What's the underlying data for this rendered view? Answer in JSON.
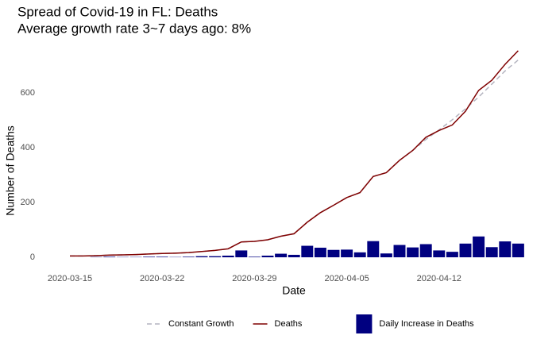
{
  "chart_data": {
    "type": "line",
    "title": "Spread of Covid-19 in FL: Deaths",
    "subtitle": "Average growth rate 3~7 days ago: 8%",
    "x_label": "Date",
    "y_label": "Number of Deaths",
    "categories": [
      "2020-03-15",
      null,
      null,
      null,
      null,
      null,
      null,
      "2020-03-22",
      null,
      null,
      null,
      null,
      null,
      null,
      "2020-03-29",
      null,
      null,
      null,
      null,
      null,
      null,
      "2020-04-05",
      null,
      null,
      null,
      null,
      null,
      null,
      "2020-04-12",
      null,
      null,
      null,
      null,
      null,
      null
    ],
    "series": [
      {
        "name": "Constant Growth",
        "color": "#b3b3bf",
        "dashed": true,
        "values": [
          5,
          5,
          6,
          8,
          9,
          10,
          12,
          14,
          15,
          17,
          21,
          25,
          31,
          56,
          58,
          64,
          77,
          86,
          128,
          163,
          190,
          218,
          236,
          295,
          309,
          354,
          390,
          430,
          465,
          502,
          542,
          585,
          632,
          680,
          720
        ]
      },
      {
        "name": "Deaths",
        "color": "#7f0000",
        "values": [
          5,
          5,
          6,
          8,
          9,
          10,
          12,
          14,
          15,
          17,
          21,
          25,
          31,
          56,
          58,
          64,
          77,
          86,
          128,
          163,
          190,
          218,
          236,
          295,
          309,
          354,
          390,
          438,
          463,
          483,
          533,
          609,
          646,
          704,
          754
        ]
      },
      {
        "name": "Daily Increase in Deaths",
        "color": "#000080",
        "kind": "bar",
        "values": [
          0,
          0,
          1,
          2,
          1,
          1,
          2,
          2,
          1,
          2,
          4,
          4,
          6,
          25,
          2,
          6,
          13,
          9,
          42,
          35,
          27,
          28,
          18,
          59,
          14,
          45,
          36,
          48,
          25,
          20,
          50,
          76,
          37,
          58,
          50
        ]
      }
    ],
    "ylim": [
      -30,
      800
    ],
    "yticks": [
      0,
      200,
      400,
      600
    ],
    "grid": false,
    "legend": "bottom"
  }
}
